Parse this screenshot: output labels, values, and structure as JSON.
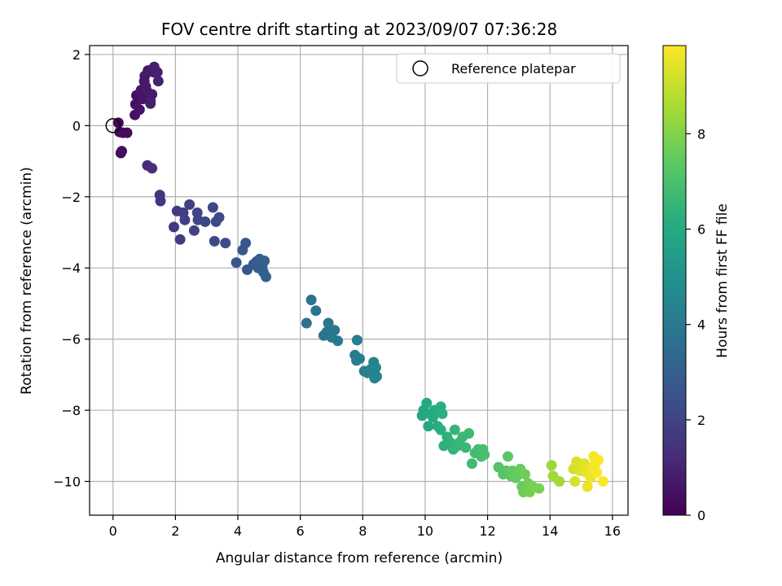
{
  "chart_data": {
    "type": "scatter",
    "title": "FOV centre drift starting at 2023/09/07 07:36:28",
    "xlabel": "Angular distance from reference (arcmin)",
    "ylabel": "Rotation from reference (arcmin)",
    "xlim": [
      -0.75,
      16.5
    ],
    "ylim": [
      -10.95,
      2.25
    ],
    "x_ticks": [
      0,
      2,
      4,
      6,
      8,
      10,
      12,
      14,
      16
    ],
    "y_ticks": [
      2,
      0,
      -2,
      -4,
      -6,
      -8,
      -10
    ],
    "x_tick_labels": [
      "0",
      "2",
      "4",
      "6",
      "8",
      "10",
      "12",
      "14",
      "16"
    ],
    "y_tick_labels": [
      "2",
      "0",
      "−2",
      "−4",
      "−6",
      "−8",
      "−10"
    ],
    "grid": true,
    "legend": {
      "placement": "top-right",
      "entries": [
        "Reference platepar"
      ]
    },
    "reference_point": {
      "x": 0,
      "y": 0
    },
    "colorbar": {
      "label": "Hours from first FF file",
      "range": [
        0,
        9.85
      ],
      "ticks": [
        0,
        2,
        4,
        6,
        8
      ],
      "tick_labels": [
        "0",
        "2",
        "4",
        "6",
        "8"
      ],
      "colormap": "viridis"
    },
    "points": [
      [
        0.17,
        0.08,
        0.1
      ],
      [
        0.21,
        -0.18,
        0.2
      ],
      [
        0.32,
        -0.2,
        0.25
      ],
      [
        0.45,
        -0.2,
        0.3
      ],
      [
        0.28,
        -0.72,
        0.35
      ],
      [
        0.25,
        -0.77,
        0.35
      ],
      [
        0.7,
        0.3,
        0.45
      ],
      [
        0.72,
        0.6,
        0.5
      ],
      [
        0.75,
        0.85,
        0.5
      ],
      [
        0.85,
        0.45,
        0.55
      ],
      [
        0.9,
        1.0,
        0.6
      ],
      [
        0.95,
        0.75,
        0.6
      ],
      [
        1.0,
        1.25,
        0.65
      ],
      [
        1.02,
        1.4,
        0.65
      ],
      [
        1.05,
        1.1,
        0.7
      ],
      [
        1.1,
        0.95,
        0.7
      ],
      [
        1.12,
        1.55,
        0.75
      ],
      [
        1.2,
        0.7,
        0.75
      ],
      [
        1.25,
        0.88,
        0.8
      ],
      [
        1.3,
        1.5,
        0.8
      ],
      [
        1.32,
        1.65,
        0.85
      ],
      [
        1.42,
        1.5,
        0.85
      ],
      [
        1.45,
        1.25,
        0.9
      ],
      [
        1.2,
        0.62,
        0.9
      ],
      [
        1.1,
        -1.12,
        1.2
      ],
      [
        1.25,
        -1.2,
        1.25
      ],
      [
        1.5,
        -1.95,
        1.5
      ],
      [
        1.52,
        -2.12,
        1.55
      ],
      [
        1.95,
        -2.85,
        1.65
      ],
      [
        2.05,
        -2.4,
        1.7
      ],
      [
        2.15,
        -3.2,
        1.75
      ],
      [
        2.25,
        -2.45,
        1.8
      ],
      [
        2.3,
        -2.65,
        1.85
      ],
      [
        2.45,
        -2.22,
        1.9
      ],
      [
        2.6,
        -2.95,
        1.95
      ],
      [
        2.7,
        -2.45,
        2.0
      ],
      [
        2.72,
        -2.65,
        2.05
      ],
      [
        2.95,
        -2.7,
        2.1
      ],
      [
        3.2,
        -2.3,
        2.15
      ],
      [
        3.25,
        -3.25,
        2.2
      ],
      [
        3.3,
        -2.7,
        2.2
      ],
      [
        3.4,
        -2.58,
        2.25
      ],
      [
        3.6,
        -3.3,
        2.3
      ],
      [
        3.95,
        -3.85,
        2.6
      ],
      [
        4.15,
        -3.5,
        2.7
      ],
      [
        4.25,
        -3.3,
        2.7
      ],
      [
        4.3,
        -4.05,
        2.75
      ],
      [
        4.5,
        -3.9,
        2.8
      ],
      [
        4.6,
        -3.82,
        2.85
      ],
      [
        4.65,
        -4.0,
        2.9
      ],
      [
        4.7,
        -3.75,
        2.95
      ],
      [
        4.78,
        -3.95,
        3.0
      ],
      [
        4.82,
        -4.12,
        3.0
      ],
      [
        4.85,
        -3.8,
        3.05
      ],
      [
        4.9,
        -4.25,
        3.05
      ],
      [
        6.2,
        -5.55,
        3.7
      ],
      [
        6.35,
        -4.9,
        3.75
      ],
      [
        6.5,
        -5.2,
        3.8
      ],
      [
        6.75,
        -5.9,
        3.85
      ],
      [
        6.85,
        -5.8,
        3.9
      ],
      [
        6.9,
        -5.55,
        3.9
      ],
      [
        7.0,
        -5.95,
        3.95
      ],
      [
        7.1,
        -5.75,
        4.0
      ],
      [
        7.2,
        -6.05,
        4.0
      ],
      [
        7.75,
        -6.45,
        4.15
      ],
      [
        7.8,
        -6.6,
        4.2
      ],
      [
        7.82,
        -6.03,
        4.2
      ],
      [
        7.9,
        -6.55,
        4.25
      ],
      [
        8.05,
        -6.9,
        4.3
      ],
      [
        8.15,
        -6.95,
        4.35
      ],
      [
        8.25,
        -6.85,
        4.35
      ],
      [
        8.35,
        -6.65,
        4.4
      ],
      [
        8.38,
        -7.1,
        4.45
      ],
      [
        8.42,
        -6.8,
        4.45
      ],
      [
        8.45,
        -7.05,
        4.5
      ],
      [
        9.9,
        -8.15,
        5.85
      ],
      [
        9.95,
        -8.0,
        5.9
      ],
      [
        10.05,
        -7.8,
        5.95
      ],
      [
        10.1,
        -8.45,
        6.0
      ],
      [
        10.15,
        -8.1,
        6.0
      ],
      [
        10.25,
        -8.2,
        6.05
      ],
      [
        10.3,
        -8.0,
        6.1
      ],
      [
        10.4,
        -8.45,
        6.15
      ],
      [
        10.5,
        -8.55,
        6.2
      ],
      [
        10.5,
        -7.9,
        6.2
      ],
      [
        10.55,
        -8.1,
        6.25
      ],
      [
        10.6,
        -9.0,
        6.3
      ],
      [
        10.7,
        -8.75,
        6.35
      ],
      [
        10.8,
        -8.9,
        6.4
      ],
      [
        10.9,
        -9.1,
        6.45
      ],
      [
        10.95,
        -8.55,
        6.5
      ],
      [
        11.05,
        -9.0,
        6.5
      ],
      [
        11.1,
        -8.9,
        6.55
      ],
      [
        11.2,
        -8.75,
        6.6
      ],
      [
        11.3,
        -9.05,
        6.65
      ],
      [
        11.4,
        -8.65,
        6.7
      ],
      [
        11.5,
        -9.5,
        6.75
      ],
      [
        11.6,
        -9.2,
        6.8
      ],
      [
        11.7,
        -9.1,
        6.8
      ],
      [
        11.8,
        -9.3,
        6.85
      ],
      [
        11.85,
        -9.1,
        6.9
      ],
      [
        11.9,
        -9.25,
        6.95
      ],
      [
        12.35,
        -9.6,
        7.2
      ],
      [
        12.5,
        -9.8,
        7.25
      ],
      [
        12.6,
        -9.7,
        7.3
      ],
      [
        12.65,
        -9.3,
        7.35
      ],
      [
        12.75,
        -9.85,
        7.4
      ],
      [
        12.8,
        -9.7,
        7.45
      ],
      [
        12.9,
        -9.9,
        7.5
      ],
      [
        13.0,
        -9.8,
        7.55
      ],
      [
        13.05,
        -9.65,
        7.6
      ],
      [
        13.1,
        -10.15,
        7.6
      ],
      [
        13.15,
        -10.3,
        7.65
      ],
      [
        13.2,
        -9.8,
        7.7
      ],
      [
        13.3,
        -10.05,
        7.75
      ],
      [
        13.35,
        -10.3,
        7.8
      ],
      [
        13.45,
        -10.15,
        7.85
      ],
      [
        13.65,
        -10.2,
        7.9
      ],
      [
        14.05,
        -9.55,
        8.4
      ],
      [
        14.1,
        -9.85,
        8.45
      ],
      [
        14.3,
        -10.0,
        8.5
      ],
      [
        14.75,
        -9.65,
        9.2
      ],
      [
        14.8,
        -10.0,
        9.25
      ],
      [
        14.85,
        -9.45,
        9.3
      ],
      [
        14.95,
        -9.7,
        9.35
      ],
      [
        15.05,
        -9.6,
        9.4
      ],
      [
        15.1,
        -9.5,
        9.45
      ],
      [
        15.15,
        -9.75,
        9.5
      ],
      [
        15.2,
        -10.15,
        9.55
      ],
      [
        15.3,
        -9.9,
        9.6
      ],
      [
        15.35,
        -9.6,
        9.65
      ],
      [
        15.4,
        -9.3,
        9.7
      ],
      [
        15.45,
        -9.5,
        9.75
      ],
      [
        15.5,
        -9.75,
        9.8
      ],
      [
        15.55,
        -9.4,
        9.8
      ],
      [
        15.7,
        -10.0,
        9.85
      ]
    ]
  }
}
